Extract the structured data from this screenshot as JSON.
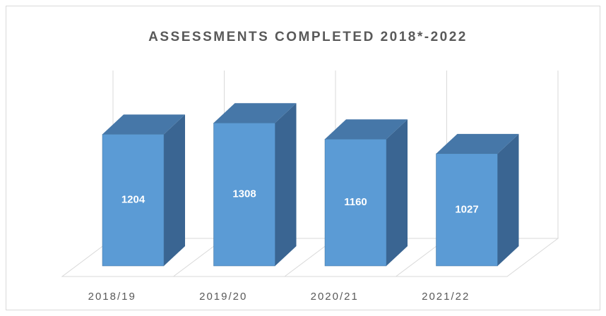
{
  "chart_data": {
    "type": "bar3d",
    "title": "ASSESSMENTS COMPLETED 2018*-2022",
    "categories": [
      "2018/19",
      "2019/20",
      "2020/21",
      "2021/22"
    ],
    "values": [
      1204,
      1308,
      1160,
      1027
    ],
    "color": "#5b9bd5",
    "ylim": [
      0,
      1400
    ]
  }
}
